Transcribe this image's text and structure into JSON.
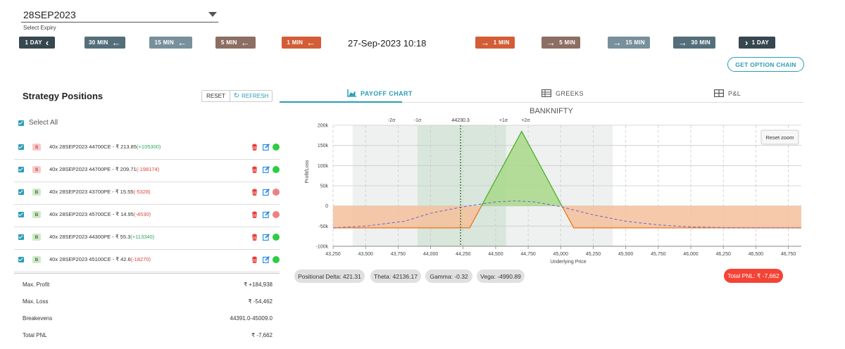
{
  "expiry": {
    "value": "28SEP2023",
    "label": "Select Expiry"
  },
  "nav": {
    "back": [
      {
        "label": "1 DAY",
        "color": "#37474f"
      },
      {
        "label": "30 MIN",
        "color": "#546e7a"
      },
      {
        "label": "15 MIN",
        "color": "#78909c"
      },
      {
        "label": "5 MIN",
        "color": "#8d6e63"
      },
      {
        "label": "1 MIN",
        "color": "#d35d37"
      }
    ],
    "forward": [
      {
        "label": "1 MIN",
        "color": "#d35d37"
      },
      {
        "label": "5 MIN",
        "color": "#8d6e63"
      },
      {
        "label": "15 MIN",
        "color": "#78909c"
      },
      {
        "label": "30 MIN",
        "color": "#546e7a"
      },
      {
        "label": "1 DAY",
        "color": "#37474f"
      }
    ],
    "datetime": "27-Sep-2023 10:18"
  },
  "get_option_chain": "GET OPTION CHAIN",
  "strategy": {
    "title": "Strategy Positions",
    "reset": "RESET",
    "refresh": "REFRESH",
    "select_all": "Select All",
    "positions": [
      {
        "side": "S",
        "desc": "40x  28SEP2023  44700CE  - ₹ 213.85",
        "pnl": "(+105300)",
        "pnl_sign": "pos",
        "status": "green"
      },
      {
        "side": "S",
        "desc": "40x  28SEP2023  44700PE  - ₹ 209.71",
        "pnl": "(-198174)",
        "pnl_sign": "neg",
        "status": "green"
      },
      {
        "side": "B",
        "desc": "40x  28SEP2023  43700PE  - ₹ 15.55",
        "pnl": "(-5328)",
        "pnl_sign": "neg",
        "status": "red"
      },
      {
        "side": "B",
        "desc": "40x  28SEP2023  45700CE  - ₹ 14.95",
        "pnl": "(-4530)",
        "pnl_sign": "neg",
        "status": "red"
      },
      {
        "side": "B",
        "desc": "40x  28SEP2023  44300PE  - ₹ 55.3",
        "pnl": "(+113340)",
        "pnl_sign": "pos",
        "status": "green"
      },
      {
        "side": "B",
        "desc": "40x  28SEP2023  45100CE  - ₹ 42.6",
        "pnl": "(-18270)",
        "pnl_sign": "neg",
        "status": "green"
      }
    ],
    "summary": {
      "max_profit_label": "Max. Profit",
      "max_profit": "₹ +184,938",
      "max_loss_label": "Max. Loss",
      "max_loss": "₹ -54,462",
      "breakevens_label": "Breakevens",
      "breakevens": "44391.0-45009.0",
      "total_pnl_label": "Total PNL",
      "total_pnl": "₹ -7,662"
    }
  },
  "tabs": [
    {
      "label": "PAYOFF CHART",
      "icon": "area-chart-icon",
      "active": true
    },
    {
      "label": "GREEKS",
      "icon": "table-icon",
      "active": false
    },
    {
      "label": "P&L",
      "icon": "grid-icon",
      "active": false
    }
  ],
  "chart_data": {
    "type": "area",
    "title": "BANKNIFTY",
    "xlabel": "Underlying Price",
    "ylabel": "Profit/Loss",
    "xlim": [
      43250,
      46850
    ],
    "ylim": [
      -100000,
      200000
    ],
    "x_ticks": [
      "43,250",
      "43,500",
      "43,750",
      "44,000",
      "44,250",
      "44,500",
      "44,750",
      "45,000",
      "45,250",
      "45,500",
      "45,750",
      "46,000",
      "46,250",
      "46,500",
      "46,750"
    ],
    "y_ticks": [
      "-100k",
      "-50k",
      "0",
      "50k",
      "100k",
      "150k",
      "200k"
    ],
    "spot": 44230.3,
    "spot_label": "44230.3",
    "sigma_bands": [
      {
        "label": "-2σ",
        "from": 43400,
        "to": 45400
      },
      {
        "label": "-1σ",
        "from": 43900,
        "to": 44580
      },
      {
        "label": "+1σ",
        "from": 43900,
        "to": 44580
      },
      {
        "label": "+2σ",
        "from": 43400,
        "to": 45400
      }
    ],
    "sigma_marks": [
      {
        "label": "-2σ",
        "x": 43700
      },
      {
        "label": "-1σ",
        "x": 43900
      },
      {
        "label": "+1σ",
        "x": 44560
      },
      {
        "label": "+2σ",
        "x": 44730
      }
    ],
    "payoff_expiry": {
      "x": [
        43250,
        44300,
        44700,
        45100,
        46850
      ],
      "y": [
        -54462,
        -54462,
        184938,
        -54462,
        -54462
      ]
    },
    "payoff_target": {
      "x": [
        43250,
        43500,
        43800,
        44000,
        44250,
        44500,
        44650,
        44800,
        45000,
        45250,
        45500,
        45750,
        46000,
        46250,
        46500,
        46850
      ],
      "y": [
        -54462,
        -50000,
        -38000,
        -18000,
        -2000,
        10000,
        12500,
        10000,
        -2000,
        -22000,
        -38000,
        -47000,
        -52000,
        -53800,
        -54300,
        -54462
      ]
    },
    "reset_zoom": "Reset zoom",
    "grid": true
  },
  "greeks": [
    {
      "label": "Positional Delta: 421.31"
    },
    {
      "label": "Theta: 42136.17"
    },
    {
      "label": "Gamma: -0.32"
    },
    {
      "label": "Vega: -4990.89"
    }
  ],
  "total_pnl_pill": "Total PNL: ₹ -7,662"
}
